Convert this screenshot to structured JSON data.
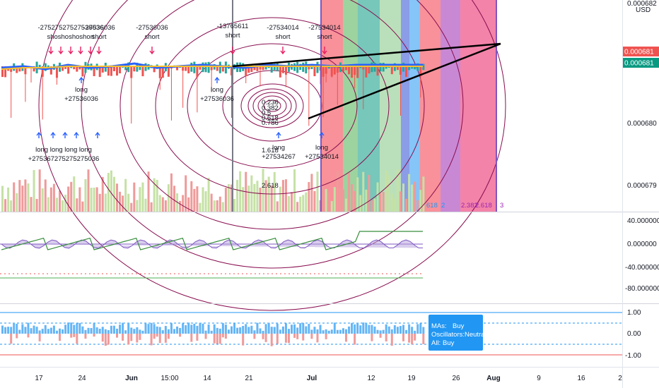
{
  "chart_data": {
    "type": "line",
    "currency": "USD",
    "x_labels": [
      "17",
      "24",
      "Jun",
      "15:00",
      "14",
      "21",
      "Jul",
      "12",
      "19",
      "26",
      "Aug",
      "9",
      "16",
      "2"
    ],
    "price_axis": {
      "ticks": [
        "0.000682",
        "0.000681",
        "0.000680",
        "0.000679"
      ],
      "last_price_red": "0.000681",
      "last_price_green": "0.000681"
    },
    "oscillator_axis": {
      "ticks": [
        "40.000000",
        "0.000000",
        "-40.000000",
        "-80.000000"
      ]
    },
    "rating_axis": {
      "ticks": [
        "1.00",
        "0.00",
        "-1.00"
      ]
    },
    "short_signals": [
      {
        "value": "-27536036",
        "label": "short"
      },
      {
        "value": "-27536036",
        "label": "short"
      },
      {
        "value": "-13765611",
        "label": "short"
      },
      {
        "value": "-27534014",
        "label": "short"
      },
      {
        "value": "-27534014",
        "label": "short"
      }
    ],
    "short_cluster": {
      "value": "-27527527527536036",
      "label": "shoshoshoshort"
    },
    "long_signals": [
      {
        "label": "long",
        "value": "+27536036"
      },
      {
        "label": "long",
        "value": "+27536036"
      },
      {
        "label": "long",
        "value": "+27534267"
      },
      {
        "label": "long",
        "value": "+27534014"
      }
    ],
    "long_cluster": {
      "label": "long long long long",
      "value": "+275367275275275036"
    },
    "fib_levels": [
      "0.236",
      "0.382",
      "0.5",
      "0.618",
      "0.786",
      "1.618",
      "2.618"
    ],
    "fib_time_labels": [
      "618",
      "2",
      "2.382",
      "2.618",
      "3"
    ],
    "zone_colors": [
      "#f23645",
      "#4caf50",
      "#089981",
      "#81c784",
      "#2196f3",
      "#f23645",
      "#9c27b0",
      "#e91e63"
    ],
    "series": [
      {
        "values": [
          0.0006808,
          0.0006809,
          0.0006807,
          0.000681,
          0.0006808,
          0.0006809,
          0.0006811,
          0.0006808,
          0.0006809,
          0.000681,
          0.0006809,
          0.0006808,
          0.000681,
          0.0006809,
          0.000681,
          0.0006809,
          0.000681,
          0.000681,
          0.000681,
          0.000681
        ]
      },
      {
        "values": [
          0.0006807,
          0.0006808,
          0.0006808,
          0.0006809,
          0.0006809,
          0.0006809,
          0.0006809,
          0.0006809,
          0.0006809,
          0.0006809,
          0.0006809,
          0.0006809,
          0.0006809,
          0.0006809,
          0.0006809,
          0.0006809,
          0.0006809,
          0.0006809,
          0.0006809,
          0.0006809
        ]
      }
    ],
    "technical_rating": {
      "mas_label": "MAs:",
      "mas_value": "Buy",
      "osc_label": "Oscillators:",
      "osc_value": "Neutral",
      "all_label": "All:",
      "all_value": "Buy"
    },
    "colors": {
      "up": "#26a69a",
      "down": "#ef5350",
      "volume_up": "#c5e1a5",
      "volume_down": "#ef9a9a",
      "rating_box": "#2196f3"
    }
  }
}
